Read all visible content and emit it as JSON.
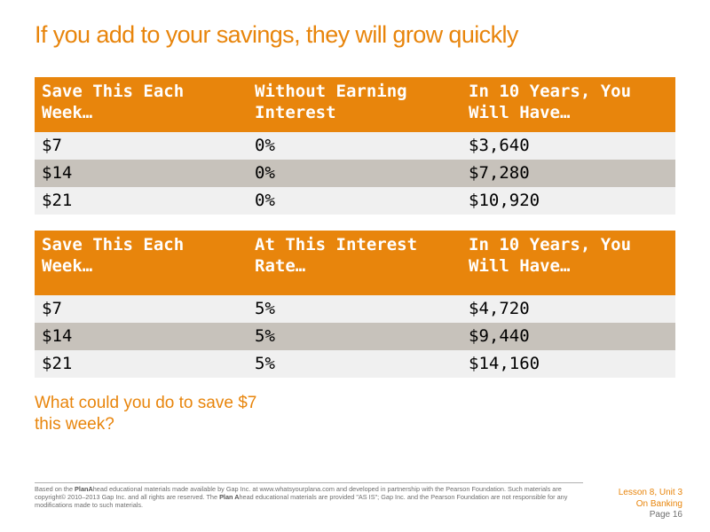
{
  "title": "If you add to your savings, they will grow quickly",
  "table_without_interest": {
    "headers": [
      "Save This Each Week…",
      "Without Earning Interest",
      "In 10 Years, You Will Have…"
    ],
    "rows": [
      [
        "$7",
        "0%",
        "$3,640"
      ],
      [
        "$14",
        "0%",
        "$7,280"
      ],
      [
        "$21",
        "0%",
        "$10,920"
      ]
    ]
  },
  "table_with_interest": {
    "headers": [
      "Save This Each Week…",
      "At This Interest Rate…",
      "In 10 Years, You Will Have…"
    ],
    "rows": [
      [
        "$7",
        "5%",
        "$4,720"
      ],
      [
        "$14",
        "5%",
        "$9,440"
      ],
      [
        "$21",
        "5%",
        "$14,160"
      ]
    ]
  },
  "question": "What could you do to save $7 this week?",
  "footer": {
    "part1": "Based on the ",
    "plan_ahead_1": "PlanA",
    "part2": "head educational materials made available by Gap Inc. at www.whatsyourplana.com and developed in partnership with the Pearson Foundation. Such materials are copyright© 2010–2013 Gap Inc. and all rights are reserved. The ",
    "plan_ahead_2": "Plan A",
    "part3": "head educational materials are provided \"AS IS\"; Gap Inc. and the Pearson Foundation are not responsible for any modifications made to such materials."
  },
  "lesson_label": {
    "line1": "Lesson 8, Unit 3",
    "line2": "On Banking"
  },
  "page_label": "Page 16",
  "colors": {
    "accent_orange": "#e8850c",
    "row_light": "#f0f0f0",
    "row_dark": "#c7c2bb"
  }
}
